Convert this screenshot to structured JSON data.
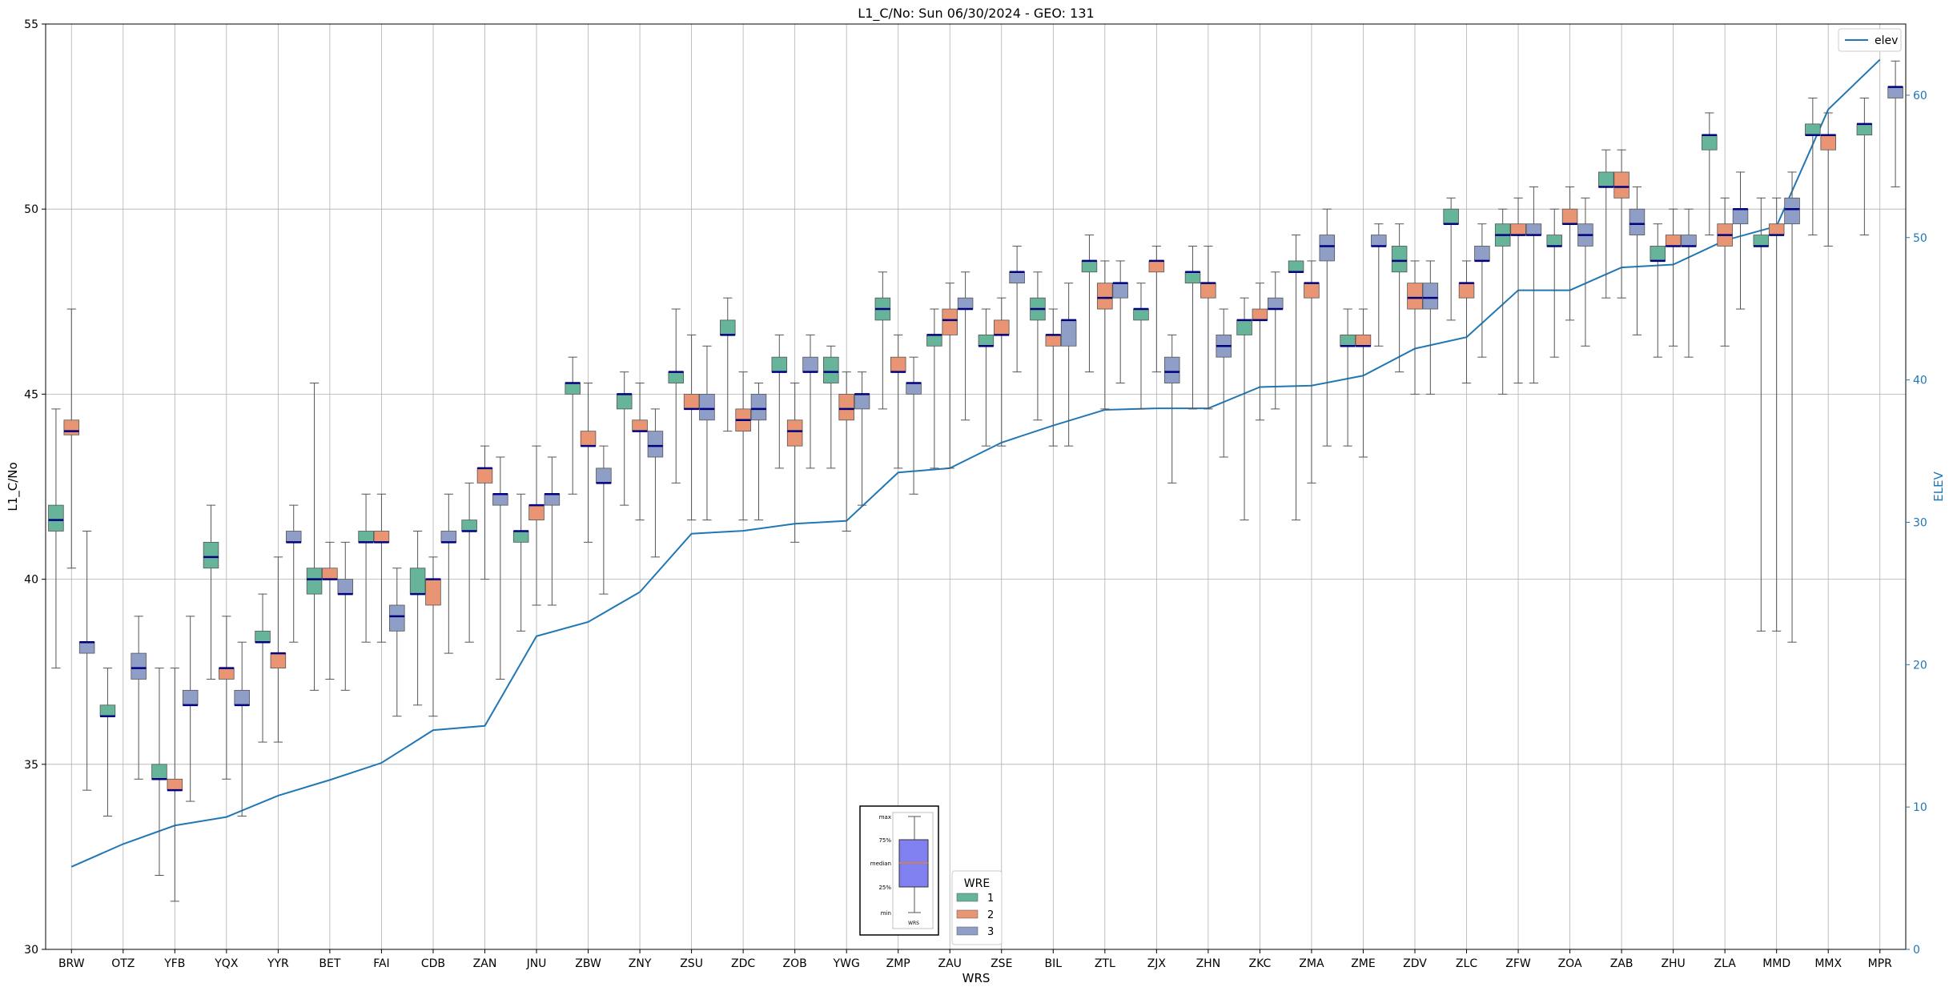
{
  "chart_data": {
    "type": "box",
    "title": "L1_C/No: Sun 06/30/2024 - GEO: 131",
    "xlabel": "WRS",
    "ylabel": "L1_C/No",
    "y2label": "ELEV",
    "ylim": [
      30,
      55
    ],
    "y2lim": [
      0,
      65
    ],
    "yticks": [
      30,
      35,
      40,
      45,
      50,
      55
    ],
    "y2ticks": [
      0,
      10,
      20,
      30,
      40,
      50,
      60
    ],
    "grid": true,
    "categories": [
      "BRW",
      "OTZ",
      "YFB",
      "YQX",
      "YYR",
      "BET",
      "FAI",
      "CDB",
      "ZAN",
      "JNU",
      "ZBW",
      "ZNY",
      "ZSU",
      "ZDC",
      "ZOB",
      "YWG",
      "ZMP",
      "ZAU",
      "ZSE",
      "BIL",
      "ZTL",
      "ZJX",
      "ZHN",
      "ZKC",
      "ZMA",
      "ZME",
      "ZDV",
      "ZLC",
      "ZFW",
      "ZOA",
      "ZAB",
      "ZHU",
      "ZLA",
      "MMD",
      "MMX",
      "MPR"
    ],
    "elev": [
      5.8,
      7.4,
      8.7,
      9.3,
      10.8,
      11.9,
      13.1,
      15.4,
      15.7,
      22.0,
      23.0,
      25.1,
      29.2,
      29.4,
      29.9,
      30.1,
      33.5,
      33.8,
      35.6,
      36.8,
      37.9,
      38.0,
      38.0,
      39.5,
      39.6,
      40.3,
      42.2,
      43.0,
      46.3,
      46.3,
      47.9,
      48.1,
      49.8,
      50.8,
      59.0,
      62.5
    ],
    "wre_colors": {
      "1": "#66b49a",
      "2": "#e99574",
      "3": "#8f9ec7"
    },
    "elev_color": "#1f77b4",
    "median_color": "#000080",
    "boxes": [
      {
        "site": "BRW",
        "wre": "1",
        "min": 37.6,
        "q1": 41.3,
        "median": 41.6,
        "q3": 42.0,
        "max": 44.6
      },
      {
        "site": "BRW",
        "wre": "2",
        "min": 40.3,
        "q1": 43.9,
        "median": 44.0,
        "q3": 44.3,
        "max": 47.3
      },
      {
        "site": "BRW",
        "wre": "3",
        "min": 34.3,
        "q1": 38.0,
        "median": 38.3,
        "q3": 38.3,
        "max": 41.3
      },
      {
        "site": "OTZ",
        "wre": "1",
        "min": 33.6,
        "q1": 36.3,
        "median": 36.3,
        "q3": 36.6,
        "max": 37.6
      },
      {
        "site": "OTZ",
        "wre": "3",
        "min": 34.6,
        "q1": 37.3,
        "median": 37.6,
        "q3": 38.0,
        "max": 39.0
      },
      {
        "site": "YFB",
        "wre": "1",
        "min": 32.0,
        "q1": 34.6,
        "median": 34.6,
        "q3": 35.0,
        "max": 37.6
      },
      {
        "site": "YFB",
        "wre": "2",
        "min": 31.3,
        "q1": 34.3,
        "median": 34.3,
        "q3": 34.6,
        "max": 37.6
      },
      {
        "site": "YFB",
        "wre": "3",
        "min": 34.0,
        "q1": 36.6,
        "median": 36.6,
        "q3": 37.0,
        "max": 39.0
      },
      {
        "site": "YQX",
        "wre": "1",
        "min": 37.3,
        "q1": 40.3,
        "median": 40.6,
        "q3": 41.0,
        "max": 42.0
      },
      {
        "site": "YQX",
        "wre": "2",
        "min": 34.6,
        "q1": 37.3,
        "median": 37.6,
        "q3": 37.6,
        "max": 39.0
      },
      {
        "site": "YQX",
        "wre": "3",
        "min": 33.6,
        "q1": 36.6,
        "median": 36.6,
        "q3": 37.0,
        "max": 38.3
      },
      {
        "site": "YYR",
        "wre": "1",
        "min": 35.6,
        "q1": 38.3,
        "median": 38.3,
        "q3": 38.6,
        "max": 39.6
      },
      {
        "site": "YYR",
        "wre": "2",
        "min": 35.6,
        "q1": 37.6,
        "median": 38.0,
        "q3": 38.0,
        "max": 40.6
      },
      {
        "site": "YYR",
        "wre": "3",
        "min": 38.3,
        "q1": 41.0,
        "median": 41.0,
        "q3": 41.3,
        "max": 42.0
      },
      {
        "site": "BET",
        "wre": "1",
        "min": 37.0,
        "q1": 39.6,
        "median": 40.0,
        "q3": 40.3,
        "max": 45.3
      },
      {
        "site": "BET",
        "wre": "2",
        "min": 37.3,
        "q1": 40.0,
        "median": 40.0,
        "q3": 40.3,
        "max": 41.0
      },
      {
        "site": "BET",
        "wre": "3",
        "min": 37.0,
        "q1": 39.6,
        "median": 39.6,
        "q3": 40.0,
        "max": 41.0
      },
      {
        "site": "FAI",
        "wre": "1",
        "min": 38.3,
        "q1": 41.0,
        "median": 41.0,
        "q3": 41.3,
        "max": 42.3
      },
      {
        "site": "FAI",
        "wre": "2",
        "min": 38.3,
        "q1": 41.0,
        "median": 41.0,
        "q3": 41.3,
        "max": 42.3
      },
      {
        "site": "FAI",
        "wre": "3",
        "min": 36.3,
        "q1": 38.6,
        "median": 39.0,
        "q3": 39.3,
        "max": 40.3
      },
      {
        "site": "CDB",
        "wre": "1",
        "min": 36.6,
        "q1": 39.6,
        "median": 39.6,
        "q3": 40.3,
        "max": 41.3
      },
      {
        "site": "CDB",
        "wre": "2",
        "min": 36.3,
        "q1": 39.3,
        "median": 40.0,
        "q3": 40.0,
        "max": 40.6
      },
      {
        "site": "CDB",
        "wre": "3",
        "min": 38.0,
        "q1": 41.0,
        "median": 41.0,
        "q3": 41.3,
        "max": 42.3
      },
      {
        "site": "ZAN",
        "wre": "1",
        "min": 38.3,
        "q1": 41.3,
        "median": 41.3,
        "q3": 41.6,
        "max": 42.6
      },
      {
        "site": "ZAN",
        "wre": "2",
        "min": 40.0,
        "q1": 42.6,
        "median": 43.0,
        "q3": 43.0,
        "max": 43.6
      },
      {
        "site": "ZAN",
        "wre": "3",
        "min": 37.3,
        "q1": 42.0,
        "median": 42.3,
        "q3": 42.3,
        "max": 43.3
      },
      {
        "site": "JNU",
        "wre": "1",
        "min": 38.6,
        "q1": 41.0,
        "median": 41.3,
        "q3": 41.3,
        "max": 42.3
      },
      {
        "site": "JNU",
        "wre": "2",
        "min": 39.3,
        "q1": 41.6,
        "median": 42.0,
        "q3": 42.0,
        "max": 43.6
      },
      {
        "site": "JNU",
        "wre": "3",
        "min": 39.3,
        "q1": 42.0,
        "median": 42.3,
        "q3": 42.3,
        "max": 43.3
      },
      {
        "site": "ZBW",
        "wre": "1",
        "min": 42.3,
        "q1": 45.0,
        "median": 45.3,
        "q3": 45.3,
        "max": 46.0
      },
      {
        "site": "ZBW",
        "wre": "2",
        "min": 41.0,
        "q1": 43.6,
        "median": 43.6,
        "q3": 44.0,
        "max": 45.3
      },
      {
        "site": "ZBW",
        "wre": "3",
        "min": 39.6,
        "q1": 42.6,
        "median": 42.6,
        "q3": 43.0,
        "max": 43.6
      },
      {
        "site": "ZNY",
        "wre": "1",
        "min": 42.0,
        "q1": 44.6,
        "median": 45.0,
        "q3": 45.0,
        "max": 45.6
      },
      {
        "site": "ZNY",
        "wre": "2",
        "min": 41.6,
        "q1": 44.0,
        "median": 44.0,
        "q3": 44.3,
        "max": 45.3
      },
      {
        "site": "ZNY",
        "wre": "3",
        "min": 40.6,
        "q1": 43.3,
        "median": 43.6,
        "q3": 44.0,
        "max": 44.6
      },
      {
        "site": "ZSU",
        "wre": "1",
        "min": 42.6,
        "q1": 45.3,
        "median": 45.6,
        "q3": 45.6,
        "max": 47.3
      },
      {
        "site": "ZSU",
        "wre": "2",
        "min": 41.6,
        "q1": 44.6,
        "median": 44.6,
        "q3": 45.0,
        "max": 46.6
      },
      {
        "site": "ZSU",
        "wre": "3",
        "min": 41.6,
        "q1": 44.3,
        "median": 44.6,
        "q3": 45.0,
        "max": 46.3
      },
      {
        "site": "ZDC",
        "wre": "1",
        "min": 44.0,
        "q1": 46.6,
        "median": 46.6,
        "q3": 47.0,
        "max": 47.6
      },
      {
        "site": "ZDC",
        "wre": "2",
        "min": 41.6,
        "q1": 44.0,
        "median": 44.3,
        "q3": 44.6,
        "max": 45.6
      },
      {
        "site": "ZDC",
        "wre": "3",
        "min": 41.6,
        "q1": 44.3,
        "median": 44.6,
        "q3": 45.0,
        "max": 45.3
      },
      {
        "site": "ZOB",
        "wre": "1",
        "min": 43.0,
        "q1": 45.6,
        "median": 45.6,
        "q3": 46.0,
        "max": 46.6
      },
      {
        "site": "ZOB",
        "wre": "2",
        "min": 41.0,
        "q1": 43.6,
        "median": 44.0,
        "q3": 44.3,
        "max": 45.3
      },
      {
        "site": "ZOB",
        "wre": "3",
        "min": 43.0,
        "q1": 45.6,
        "median": 45.6,
        "q3": 46.0,
        "max": 46.6
      },
      {
        "site": "YWG",
        "wre": "1",
        "min": 43.0,
        "q1": 45.3,
        "median": 45.6,
        "q3": 46.0,
        "max": 46.3
      },
      {
        "site": "YWG",
        "wre": "2",
        "min": 41.3,
        "q1": 44.3,
        "median": 44.6,
        "q3": 45.0,
        "max": 45.6
      },
      {
        "site": "YWG",
        "wre": "3",
        "min": 42.0,
        "q1": 44.6,
        "median": 45.0,
        "q3": 45.0,
        "max": 45.6
      },
      {
        "site": "ZMP",
        "wre": "1",
        "min": 44.6,
        "q1": 47.0,
        "median": 47.3,
        "q3": 47.6,
        "max": 48.3
      },
      {
        "site": "ZMP",
        "wre": "2",
        "min": 43.0,
        "q1": 45.6,
        "median": 45.6,
        "q3": 46.0,
        "max": 46.6
      },
      {
        "site": "ZMP",
        "wre": "3",
        "min": 42.3,
        "q1": 45.0,
        "median": 45.3,
        "q3": 45.3,
        "max": 46.0
      },
      {
        "site": "ZAU",
        "wre": "1",
        "min": 43.0,
        "q1": 46.3,
        "median": 46.6,
        "q3": 46.6,
        "max": 47.3
      },
      {
        "site": "ZAU",
        "wre": "2",
        "min": 43.0,
        "q1": 46.6,
        "median": 47.0,
        "q3": 47.3,
        "max": 48.0
      },
      {
        "site": "ZAU",
        "wre": "3",
        "min": 44.3,
        "q1": 47.3,
        "median": 47.3,
        "q3": 47.6,
        "max": 48.3
      },
      {
        "site": "ZSE",
        "wre": "1",
        "min": 43.6,
        "q1": 46.3,
        "median": 46.3,
        "q3": 46.6,
        "max": 47.3
      },
      {
        "site": "ZSE",
        "wre": "2",
        "min": 43.6,
        "q1": 46.6,
        "median": 46.6,
        "q3": 47.0,
        "max": 47.6
      },
      {
        "site": "ZSE",
        "wre": "3",
        "min": 45.6,
        "q1": 48.0,
        "median": 48.3,
        "q3": 48.3,
        "max": 49.0
      },
      {
        "site": "BIL",
        "wre": "1",
        "min": 44.3,
        "q1": 47.0,
        "median": 47.3,
        "q3": 47.6,
        "max": 48.3
      },
      {
        "site": "BIL",
        "wre": "2",
        "min": 43.6,
        "q1": 46.3,
        "median": 46.6,
        "q3": 46.6,
        "max": 47.3
      },
      {
        "site": "BIL",
        "wre": "3",
        "min": 43.6,
        "q1": 46.3,
        "median": 47.0,
        "q3": 47.0,
        "max": 48.0
      },
      {
        "site": "ZTL",
        "wre": "1",
        "min": 45.6,
        "q1": 48.3,
        "median": 48.6,
        "q3": 48.6,
        "max": 49.3
      },
      {
        "site": "ZTL",
        "wre": "2",
        "min": 44.6,
        "q1": 47.3,
        "median": 47.6,
        "q3": 48.0,
        "max": 48.6
      },
      {
        "site": "ZTL",
        "wre": "3",
        "min": 45.3,
        "q1": 47.6,
        "median": 48.0,
        "q3": 48.0,
        "max": 48.6
      },
      {
        "site": "ZJX",
        "wre": "1",
        "min": 44.6,
        "q1": 47.0,
        "median": 47.3,
        "q3": 47.3,
        "max": 48.0
      },
      {
        "site": "ZJX",
        "wre": "2",
        "min": 45.6,
        "q1": 48.3,
        "median": 48.6,
        "q3": 48.6,
        "max": 49.0
      },
      {
        "site": "ZJX",
        "wre": "3",
        "min": 42.6,
        "q1": 45.3,
        "median": 45.6,
        "q3": 46.0,
        "max": 46.6
      },
      {
        "site": "ZHN",
        "wre": "1",
        "min": 44.6,
        "q1": 48.0,
        "median": 48.3,
        "q3": 48.3,
        "max": 49.0
      },
      {
        "site": "ZHN",
        "wre": "2",
        "min": 44.6,
        "q1": 47.6,
        "median": 48.0,
        "q3": 48.0,
        "max": 49.0
      },
      {
        "site": "ZHN",
        "wre": "3",
        "min": 43.3,
        "q1": 46.0,
        "median": 46.3,
        "q3": 46.6,
        "max": 47.3
      },
      {
        "site": "ZKC",
        "wre": "1",
        "min": 41.6,
        "q1": 46.6,
        "median": 47.0,
        "q3": 47.0,
        "max": 47.6
      },
      {
        "site": "ZKC",
        "wre": "2",
        "min": 44.3,
        "q1": 47.0,
        "median": 47.0,
        "q3": 47.3,
        "max": 48.0
      },
      {
        "site": "ZKC",
        "wre": "3",
        "min": 44.6,
        "q1": 47.3,
        "median": 47.3,
        "q3": 47.6,
        "max": 48.3
      },
      {
        "site": "ZMA",
        "wre": "1",
        "min": 41.6,
        "q1": 48.3,
        "median": 48.3,
        "q3": 48.6,
        "max": 49.3
      },
      {
        "site": "ZMA",
        "wre": "2",
        "min": 42.6,
        "q1": 47.6,
        "median": 48.0,
        "q3": 48.0,
        "max": 48.6
      },
      {
        "site": "ZMA",
        "wre": "3",
        "min": 43.6,
        "q1": 48.6,
        "median": 49.0,
        "q3": 49.3,
        "max": 50.0
      },
      {
        "site": "ZME",
        "wre": "1",
        "min": 43.6,
        "q1": 46.3,
        "median": 46.3,
        "q3": 46.6,
        "max": 47.3
      },
      {
        "site": "ZME",
        "wre": "2",
        "min": 43.3,
        "q1": 46.3,
        "median": 46.3,
        "q3": 46.6,
        "max": 47.3
      },
      {
        "site": "ZME",
        "wre": "3",
        "min": 46.3,
        "q1": 49.0,
        "median": 49.0,
        "q3": 49.3,
        "max": 49.6
      },
      {
        "site": "ZDV",
        "wre": "1",
        "min": 45.6,
        "q1": 48.3,
        "median": 48.6,
        "q3": 49.0,
        "max": 49.6
      },
      {
        "site": "ZDV",
        "wre": "2",
        "min": 45.0,
        "q1": 47.3,
        "median": 47.6,
        "q3": 48.0,
        "max": 48.6
      },
      {
        "site": "ZDV",
        "wre": "3",
        "min": 45.0,
        "q1": 47.3,
        "median": 47.6,
        "q3": 48.0,
        "max": 48.6
      },
      {
        "site": "ZLC",
        "wre": "1",
        "min": 47.0,
        "q1": 49.6,
        "median": 49.6,
        "q3": 50.0,
        "max": 50.3
      },
      {
        "site": "ZLC",
        "wre": "2",
        "min": 45.3,
        "q1": 47.6,
        "median": 48.0,
        "q3": 48.0,
        "max": 48.6
      },
      {
        "site": "ZLC",
        "wre": "3",
        "min": 46.0,
        "q1": 48.6,
        "median": 48.6,
        "q3": 49.0,
        "max": 49.6
      },
      {
        "site": "ZFW",
        "wre": "1",
        "min": 45.0,
        "q1": 49.0,
        "median": 49.3,
        "q3": 49.6,
        "max": 50.0
      },
      {
        "site": "ZFW",
        "wre": "2",
        "min": 45.3,
        "q1": 49.3,
        "median": 49.3,
        "q3": 49.6,
        "max": 50.3
      },
      {
        "site": "ZFW",
        "wre": "3",
        "min": 45.3,
        "q1": 49.3,
        "median": 49.3,
        "q3": 49.6,
        "max": 50.6
      },
      {
        "site": "ZOA",
        "wre": "1",
        "min": 46.0,
        "q1": 49.0,
        "median": 49.0,
        "q3": 49.3,
        "max": 50.0
      },
      {
        "site": "ZOA",
        "wre": "2",
        "min": 47.0,
        "q1": 49.6,
        "median": 49.6,
        "q3": 50.0,
        "max": 50.6
      },
      {
        "site": "ZOA",
        "wre": "3",
        "min": 46.3,
        "q1": 49.0,
        "median": 49.3,
        "q3": 49.6,
        "max": 50.3
      },
      {
        "site": "ZAB",
        "wre": "1",
        "min": 47.6,
        "q1": 50.6,
        "median": 50.6,
        "q3": 51.0,
        "max": 51.6
      },
      {
        "site": "ZAB",
        "wre": "2",
        "min": 47.6,
        "q1": 50.3,
        "median": 50.6,
        "q3": 51.0,
        "max": 51.6
      },
      {
        "site": "ZAB",
        "wre": "3",
        "min": 46.6,
        "q1": 49.3,
        "median": 49.6,
        "q3": 50.0,
        "max": 50.6
      },
      {
        "site": "ZHU",
        "wre": "1",
        "min": 46.0,
        "q1": 48.6,
        "median": 48.6,
        "q3": 49.0,
        "max": 49.6
      },
      {
        "site": "ZHU",
        "wre": "2",
        "min": 46.3,
        "q1": 49.0,
        "median": 49.0,
        "q3": 49.3,
        "max": 50.0
      },
      {
        "site": "ZHU",
        "wre": "3",
        "min": 46.0,
        "q1": 49.0,
        "median": 49.0,
        "q3": 49.3,
        "max": 50.0
      },
      {
        "site": "ZLA",
        "wre": "1",
        "min": 49.3,
        "q1": 51.6,
        "median": 52.0,
        "q3": 52.0,
        "max": 52.6
      },
      {
        "site": "ZLA",
        "wre": "2",
        "min": 46.3,
        "q1": 49.0,
        "median": 49.3,
        "q3": 49.6,
        "max": 50.3
      },
      {
        "site": "ZLA",
        "wre": "3",
        "min": 47.3,
        "q1": 49.6,
        "median": 50.0,
        "q3": 50.0,
        "max": 51.0
      },
      {
        "site": "MMD",
        "wre": "1",
        "min": 38.6,
        "q1": 49.0,
        "median": 49.0,
        "q3": 49.3,
        "max": 50.3
      },
      {
        "site": "MMD",
        "wre": "2",
        "min": 38.6,
        "q1": 49.3,
        "median": 49.3,
        "q3": 49.6,
        "max": 50.3
      },
      {
        "site": "MMD",
        "wre": "3",
        "min": 38.3,
        "q1": 49.6,
        "median": 50.0,
        "q3": 50.3,
        "max": 51.0
      },
      {
        "site": "MMX",
        "wre": "1",
        "min": 49.3,
        "q1": 52.0,
        "median": 52.0,
        "q3": 52.3,
        "max": 53.0
      },
      {
        "site": "MMX",
        "wre": "2",
        "min": 49.0,
        "q1": 51.6,
        "median": 52.0,
        "q3": 52.0,
        "max": 52.6
      },
      {
        "site": "MPR",
        "wre": "1",
        "min": 49.3,
        "q1": 52.0,
        "median": 52.3,
        "q3": 52.3,
        "max": 53.0
      },
      {
        "site": "MPR",
        "wre": "3",
        "min": 50.6,
        "q1": 53.0,
        "median": 53.3,
        "q3": 53.3,
        "max": 54.0
      }
    ],
    "legend_elev": {
      "label": "elev",
      "placement": "upper-right"
    },
    "legend_wre": {
      "title": "WRE",
      "entries": [
        "1",
        "2",
        "3"
      ],
      "placement": "bottom-center"
    },
    "key_box": {
      "labels": [
        "max",
        "75%",
        "median",
        "25%",
        "min"
      ],
      "xlabel": "WRS"
    }
  }
}
